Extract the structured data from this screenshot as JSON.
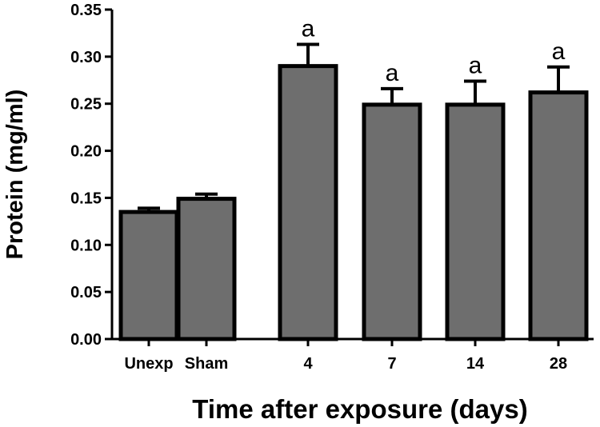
{
  "chart_data": {
    "type": "bar",
    "title": "",
    "xlabel": "Time after exposure (days)",
    "ylabel": "Protein (mg/ml)",
    "ylim": [
      0,
      0.35
    ],
    "yticks": [
      "0.00",
      "0.05",
      "0.10",
      "0.15",
      "0.20",
      "0.25",
      "0.30",
      "0.35"
    ],
    "categories": [
      "Unexp",
      "Sham",
      "4",
      "7",
      "14",
      "28"
    ],
    "values": [
      0.135,
      0.149,
      0.29,
      0.249,
      0.249,
      0.262
    ],
    "errors": [
      0.004,
      0.005,
      0.023,
      0.017,
      0.025,
      0.027
    ],
    "annotations": [
      "",
      "",
      "a",
      "a",
      "a",
      "a"
    ],
    "grid": false,
    "bar_color": "#6e6e6e",
    "edge_color": "#000000"
  }
}
